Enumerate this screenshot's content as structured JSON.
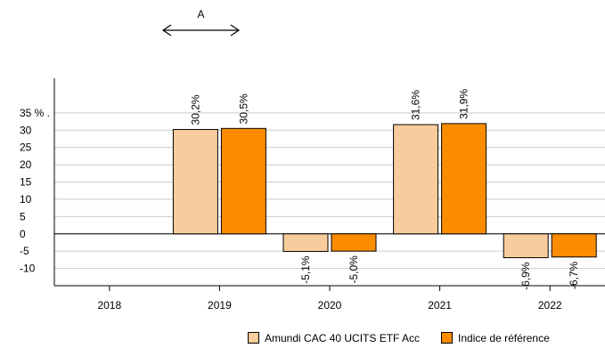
{
  "chart_data": {
    "type": "bar",
    "title": "",
    "xlabel": "",
    "ylabel": "",
    "categories": [
      "2018",
      "2019",
      "2020",
      "2021",
      "2022"
    ],
    "series": [
      {
        "name": "Amundi CAC 40 UCITS ETF Acc",
        "color": "#f8cc9c",
        "values": [
          null,
          30.2,
          -5.1,
          31.6,
          -6.9
        ],
        "labels": [
          "",
          "30,2%",
          "-5,1%",
          "31,6%",
          "-6,9%"
        ]
      },
      {
        "name": "Indice de référence",
        "color": "#fb8c00",
        "values": [
          null,
          30.5,
          -5.0,
          31.9,
          -6.7
        ],
        "labels": [
          "",
          "30,5%",
          "-5,0%",
          "31,9%",
          "-6,7%"
        ]
      }
    ],
    "y_ticks": [
      {
        "value": 35,
        "label": "35 % ."
      },
      {
        "value": 30,
        "label": "30"
      },
      {
        "value": 25,
        "label": "25"
      },
      {
        "value": 20,
        "label": "20"
      },
      {
        "value": 15,
        "label": "15"
      },
      {
        "value": 10,
        "label": "10"
      },
      {
        "value": 5,
        "label": "5"
      },
      {
        "value": 0,
        "label": "0"
      },
      {
        "value": -5,
        "label": "-5"
      },
      {
        "value": -10,
        "label": "-10"
      }
    ],
    "ylim": [
      -15,
      45
    ],
    "grid": true,
    "legend_position": "bottom-right",
    "annotation": {
      "label": "A",
      "from_category": "2019",
      "span": "2019"
    }
  }
}
